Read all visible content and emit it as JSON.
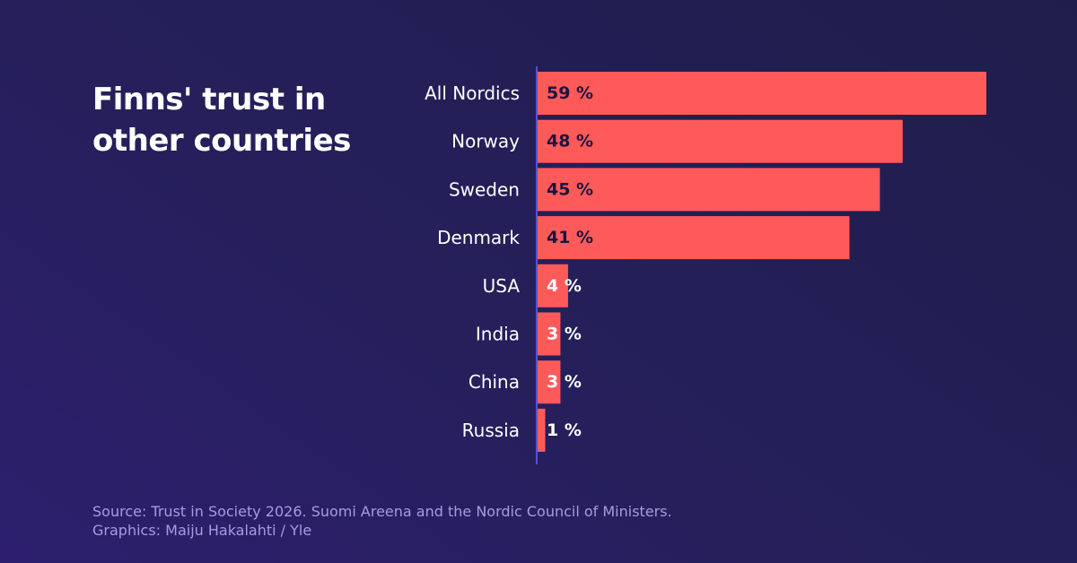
{
  "title": "Finns' trust in other countries",
  "chart_data": {
    "type": "bar",
    "orientation": "horizontal",
    "title": "Finns' trust in other countries",
    "categories": [
      "All Nordics",
      "Norway",
      "Sweden",
      "Denmark",
      "USA",
      "India",
      "China",
      "Russia"
    ],
    "values": [
      59,
      48,
      45,
      41,
      4,
      3,
      3,
      1
    ],
    "value_labels": [
      "59 %",
      "48 %",
      "45 %",
      "41 %",
      "4 %",
      "3 %",
      "3 %",
      "1 %"
    ],
    "unit": "%",
    "xlim": [
      0,
      59
    ],
    "bar_color": "#ff5a5a",
    "axis_color": "#5b50d0",
    "label_dark_color": "#1a1440",
    "label_light_color": "#ffffff"
  },
  "footer": {
    "source": "Source: Trust in Society 2026. Suomi Areena and the Nordic Council of Ministers.",
    "credit": "Graphics: Maiju Hakalahti / Yle"
  }
}
